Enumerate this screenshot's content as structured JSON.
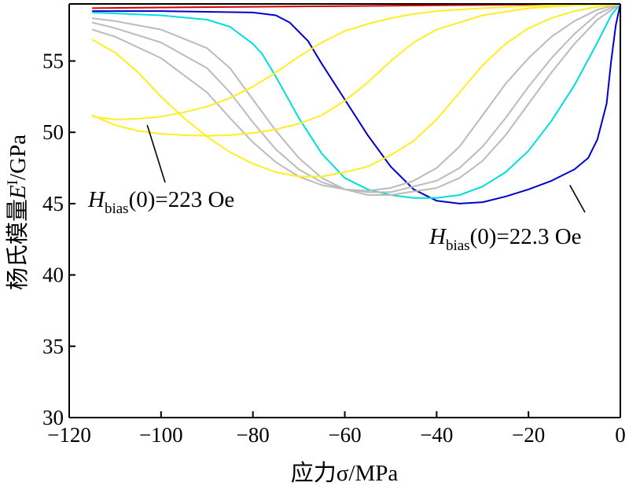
{
  "chart_data": {
    "type": "line",
    "title": "",
    "xlabel": "应力σ/MPa",
    "ylabel": "杨氏模量E^I/GPa",
    "xlim": [
      -120,
      0
    ],
    "ylim": [
      30,
      59
    ],
    "x_ticks": [
      "−120",
      "−100",
      "−80",
      "−60",
      "−40",
      "−20",
      "0"
    ],
    "y_ticks": [
      "30",
      "35",
      "40",
      "45",
      "50",
      "55"
    ],
    "grid": false,
    "legend": "none",
    "annotations": [
      {
        "label": "Hbias(0)=223 Oe",
        "main": "H",
        "sub": "bias",
        "rest": "(0)=223 Oe",
        "point": {
          "x": -103,
          "y": 50.5
        }
      },
      {
        "label": "Hbias(0)=22.3 Oe",
        "main": "H",
        "sub": "bias",
        "rest": "(0)=22.3 Oe",
        "point": {
          "x": -11,
          "y": 46.3
        }
      }
    ],
    "series": [
      {
        "color": "#dd0000",
        "x": [
          -115,
          -100,
          -80,
          -60,
          -40,
          -20,
          -10,
          0
        ],
        "y": [
          58.7,
          58.75,
          58.8,
          58.85,
          58.9,
          58.95,
          58.97,
          59
        ]
      },
      {
        "color": "#0000cc",
        "x": [
          -115,
          -100,
          -80,
          -75,
          -72,
          -68,
          -65,
          -60,
          -55,
          -50,
          -45,
          -40,
          -35,
          -30,
          -25,
          -20,
          -15,
          -10,
          -7,
          -5,
          -3,
          -2,
          -1,
          0
        ],
        "y": [
          58.5,
          58.5,
          58.4,
          58.2,
          57.7,
          56.4,
          54.8,
          52.3,
          49.8,
          47.6,
          46.0,
          45.2,
          45.0,
          45.1,
          45.5,
          46.0,
          46.6,
          47.4,
          48.2,
          49.5,
          52,
          55,
          57.5,
          59
        ]
      },
      {
        "color": "#00dddd",
        "x": [
          -115,
          -100,
          -90,
          -85,
          -80,
          -78,
          -75,
          -70,
          -65,
          -60,
          -55,
          -50,
          -45,
          -40,
          -35,
          -30,
          -25,
          -20,
          -15,
          -10,
          -5,
          -2,
          0
        ],
        "y": [
          58.4,
          58.2,
          57.9,
          57.4,
          56.2,
          55.5,
          53.9,
          51.0,
          48.5,
          46.8,
          46.0,
          45.6,
          45.4,
          45.4,
          45.6,
          46.2,
          47.2,
          48.7,
          50.8,
          53.3,
          56.3,
          58.2,
          59
        ]
      },
      {
        "color": "#bbbbbb",
        "x": [
          -115,
          -110,
          -100,
          -90,
          -85,
          -80,
          -75,
          -70,
          -65,
          -60,
          -55,
          -50,
          -40,
          -35,
          -30,
          -25,
          -20,
          -15,
          -10,
          -5,
          0
        ],
        "y": [
          58.0,
          57.8,
          57.2,
          55.9,
          54.5,
          52.3,
          50.1,
          48.2,
          46.8,
          46.0,
          45.6,
          45.6,
          46.1,
          46.8,
          48.0,
          49.8,
          52.0,
          54.2,
          56.2,
          57.9,
          59
        ]
      },
      {
        "color": "#bbbbbb",
        "x": [
          -115,
          -110,
          -100,
          -90,
          -85,
          -80,
          -75,
          -70,
          -65,
          -60,
          -55,
          -50,
          -40,
          -35,
          -30,
          -25,
          -20,
          -15,
          -10,
          -5,
          0
        ],
        "y": [
          57.7,
          57.3,
          56.3,
          54.5,
          52.8,
          50.7,
          48.8,
          47.4,
          46.5,
          46.0,
          45.8,
          45.8,
          46.6,
          47.5,
          49.0,
          51.0,
          53.2,
          55.2,
          56.9,
          58.3,
          59
        ]
      },
      {
        "color": "#bbbbbb",
        "x": [
          -115,
          -110,
          -100,
          -90,
          -85,
          -80,
          -75,
          -70,
          -65,
          -60,
          -55,
          -50,
          -45,
          -40,
          -35,
          -30,
          -25,
          -20,
          -15,
          -10,
          -5,
          0
        ],
        "y": [
          57.2,
          56.7,
          55.2,
          52.8,
          51.0,
          49.3,
          47.9,
          46.9,
          46.3,
          46.0,
          45.9,
          46.1,
          46.6,
          47.5,
          49.0,
          51.2,
          53.4,
          55.2,
          56.7,
          57.8,
          58.6,
          59
        ]
      },
      {
        "color": "#ffee22",
        "x": [
          -115,
          -110,
          -105,
          -100,
          -95,
          -90,
          -85,
          -80,
          -75,
          -70,
          -65,
          -60,
          -55,
          -50,
          -45,
          -40,
          -35,
          -30,
          -25,
          -20,
          -15,
          -10,
          -5,
          0
        ],
        "y": [
          56.5,
          55.6,
          54.2,
          52.5,
          51.0,
          49.7,
          48.6,
          47.8,
          47.2,
          46.9,
          46.9,
          47.2,
          47.6,
          48.4,
          49.4,
          50.9,
          52.8,
          54.7,
          56.2,
          57.3,
          58.0,
          58.5,
          58.8,
          59
        ]
      },
      {
        "color": "#ffee22",
        "x": [
          -115,
          -110,
          -105,
          -100,
          -95,
          -90,
          -85,
          -80,
          -75,
          -70,
          -65,
          -60,
          -55,
          -50,
          -45,
          -40,
          -30,
          -20,
          -10,
          0
        ],
        "y": [
          51.2,
          50.5,
          50.1,
          49.9,
          49.8,
          49.75,
          49.8,
          49.95,
          50.2,
          50.6,
          51.2,
          52.2,
          53.5,
          55.0,
          56.3,
          57.2,
          58.2,
          58.7,
          58.9,
          59
        ]
      },
      {
        "color": "#ffee22",
        "x": [
          -115,
          -110,
          -105,
          -100,
          -95,
          -90,
          -85,
          -80,
          -75,
          -70,
          -65,
          -60,
          -55,
          -50,
          -45,
          -40,
          -30,
          -20,
          -10,
          0
        ],
        "y": [
          51.1,
          50.9,
          50.95,
          51.1,
          51.4,
          51.8,
          52.4,
          53.2,
          54.2,
          55.3,
          56.3,
          57.1,
          57.6,
          58.0,
          58.3,
          58.5,
          58.7,
          58.85,
          58.95,
          59
        ]
      }
    ]
  }
}
